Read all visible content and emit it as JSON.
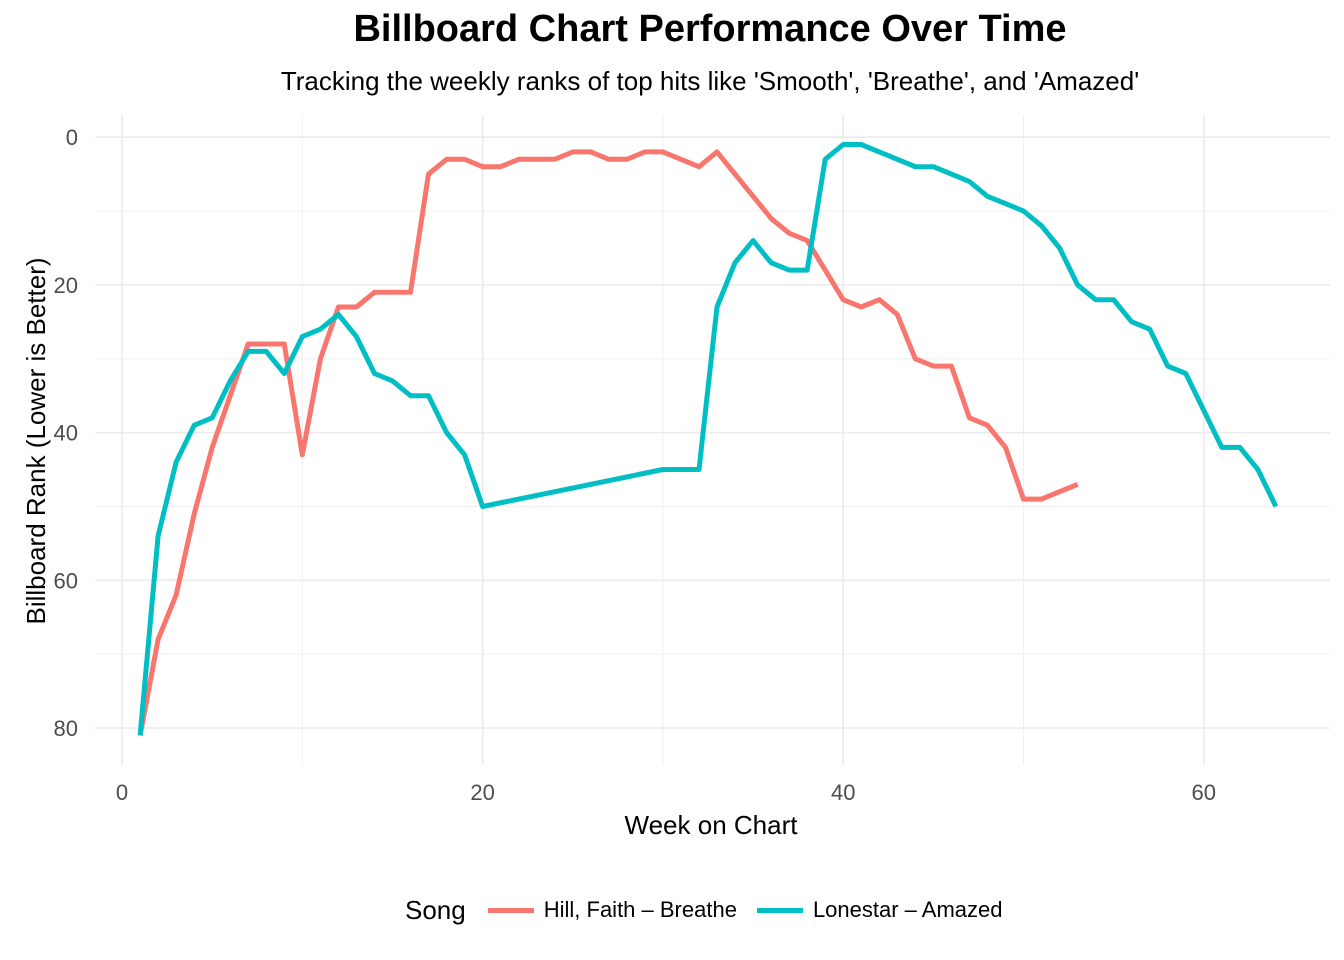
{
  "chart_data": {
    "type": "line",
    "title": "Billboard Chart Performance Over Time",
    "subtitle": "Tracking the weekly ranks of top hits like 'Smooth', 'Breathe', and 'Amazed'",
    "xlabel": "Week on Chart",
    "ylabel": "Billboard Rank (Lower is Better)",
    "xlim": [
      -1.5,
      67
    ],
    "ylim": [
      85,
      -3
    ],
    "y_reversed": true,
    "xticks": [
      0,
      20,
      40,
      60
    ],
    "yticks": [
      0,
      20,
      40,
      60,
      80
    ],
    "grid": true,
    "legend_title": "Song",
    "legend_position": "bottom",
    "series": [
      {
        "name": "Hill, Faith – Breathe",
        "color": "#F8766D",
        "x": [
          1,
          2,
          3,
          4,
          5,
          6,
          7,
          8,
          9,
          10,
          11,
          12,
          13,
          14,
          15,
          16,
          17,
          18,
          19,
          20,
          21,
          22,
          23,
          24,
          25,
          26,
          27,
          28,
          29,
          30,
          31,
          32,
          33,
          34,
          35,
          36,
          37,
          38,
          39,
          40,
          41,
          42,
          43,
          44,
          45,
          46,
          47,
          48,
          49,
          50,
          51,
          52,
          53
        ],
        "y": [
          81,
          68,
          62,
          51,
          42,
          35,
          28,
          28,
          28,
          43,
          30,
          23,
          23,
          21,
          21,
          21,
          5,
          3,
          3,
          4,
          4,
          3,
          3,
          3,
          2,
          2,
          3,
          3,
          2,
          2,
          3,
          4,
          2,
          5,
          8,
          11,
          13,
          14,
          18,
          22,
          23,
          22,
          24,
          30,
          31,
          31,
          38,
          39,
          42,
          49,
          49,
          48,
          47
        ]
      },
      {
        "name": "Lonestar – Amazed",
        "color": "#00BFC4",
        "x": [
          1,
          2,
          3,
          4,
          5,
          6,
          7,
          8,
          9,
          10,
          11,
          12,
          13,
          14,
          15,
          16,
          17,
          18,
          19,
          20,
          30,
          31,
          32,
          33,
          34,
          35,
          36,
          37,
          38,
          39,
          40,
          41,
          42,
          43,
          44,
          45,
          46,
          47,
          48,
          49,
          50,
          51,
          52,
          53,
          54,
          55,
          56,
          57,
          58,
          59,
          60,
          61,
          62,
          63,
          64
        ],
        "y": [
          81,
          54,
          44,
          39,
          38,
          33,
          29,
          29,
          32,
          27,
          26,
          24,
          27,
          32,
          33,
          35,
          35,
          40,
          43,
          50,
          45,
          45,
          45,
          23,
          17,
          14,
          17,
          18,
          18,
          3,
          1,
          1,
          2,
          3,
          4,
          4,
          5,
          6,
          8,
          9,
          10,
          12,
          15,
          20,
          22,
          22,
          25,
          26,
          31,
          32,
          37,
          42,
          42,
          45,
          50
        ]
      }
    ]
  }
}
